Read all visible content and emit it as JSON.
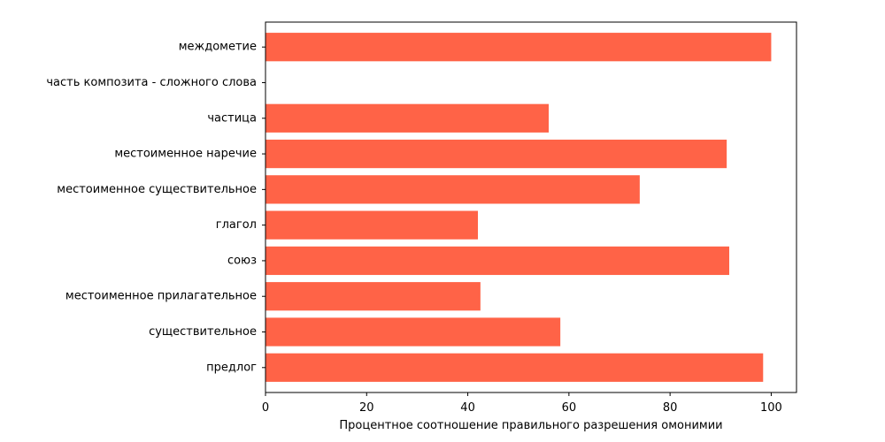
{
  "chart_data": {
    "type": "bar",
    "orientation": "horizontal",
    "title": "",
    "xlabel": "Процентное соотношение правильного разрешения омонимии",
    "ylabel": "",
    "xlim": [
      0,
      105
    ],
    "xticks": [
      0,
      20,
      40,
      60,
      80,
      100
    ],
    "grid": false,
    "legend": "none",
    "bar_color": "#ff6347",
    "categories": [
      "предлог",
      "существительное",
      "местоименное прилагательное",
      "союз",
      "глагол",
      "местоименное существительное",
      "местоименное наречие",
      "частица",
      "часть композита - сложного слова",
      "междометие"
    ],
    "values": [
      98.4,
      58.3,
      42.5,
      91.7,
      42.0,
      74.0,
      91.2,
      56.0,
      0,
      100.0
    ]
  }
}
